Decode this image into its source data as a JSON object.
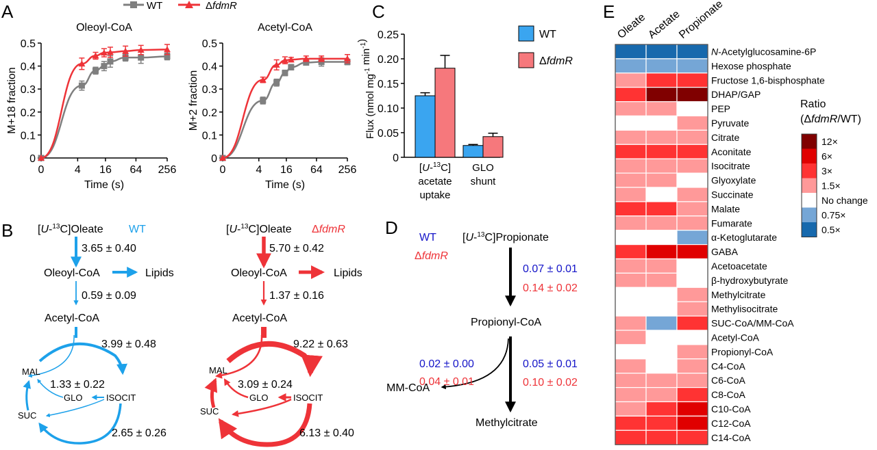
{
  "panel_labels": {
    "a": "A",
    "b": "B",
    "c": "C",
    "d": "D",
    "e": "E"
  },
  "colors": {
    "wt_gray": "#7f7f7f",
    "mut_red": "#ee3338",
    "wt_blue": "#1da1ea",
    "c_blue": "#3aa5f0",
    "c_pink": "#f6787c",
    "d_blue": "#1414c8",
    "d_red": "#ee3338"
  },
  "legend_a": {
    "wt": "WT",
    "mut_delta": "Δ",
    "mut_gene": "fdmR"
  },
  "chart_data": [
    {
      "id": "A1",
      "type": "line",
      "title": "Oleoyl-CoA",
      "xlabel": "Time (s)",
      "ylabel": "M+18 fraction",
      "xscale": "log2(1+t)",
      "xticks": [
        "0",
        "4",
        "16",
        "64",
        "256"
      ],
      "yticks": [
        "0",
        "0.1",
        "0.2",
        "0.3",
        "0.4",
        "0.5"
      ],
      "ylim": [
        0,
        0.5
      ],
      "xlim": [
        0,
        256
      ],
      "x": [
        0,
        5,
        10,
        15,
        20,
        40,
        80,
        256
      ],
      "series": [
        {
          "name": "WT",
          "marker": "square",
          "values": [
            0,
            0.315,
            0.38,
            0.4,
            0.42,
            0.437,
            0.437,
            0.442
          ],
          "errors": [
            0,
            0.02,
            0.015,
            0.02,
            0.025,
            0.015,
            0.025,
            0.015
          ]
        },
        {
          "name": "ΔfdmR",
          "marker": "triangle",
          "values": [
            0,
            0.41,
            0.445,
            0.458,
            0.46,
            0.465,
            0.47,
            0.472
          ],
          "errors": [
            0,
            0.025,
            0.015,
            0.018,
            0.022,
            0.022,
            0.02,
            0.022
          ]
        }
      ]
    },
    {
      "id": "A2",
      "type": "line",
      "title": "Acetyl-CoA",
      "xlabel": "Time (s)",
      "ylabel": "M+2 fraction",
      "xscale": "log2(1+t)",
      "xticks": [
        "0",
        "4",
        "16",
        "64",
        "256"
      ],
      "yticks": [
        "0",
        "0.1",
        "0.2",
        "0.3",
        "0.4",
        "0.5"
      ],
      "ylim": [
        0,
        0.5
      ],
      "xlim": [
        0,
        256
      ],
      "x": [
        0,
        5,
        10,
        15,
        20,
        40,
        80,
        256
      ],
      "series": [
        {
          "name": "WT",
          "marker": "square",
          "values": [
            0,
            0.25,
            0.328,
            0.37,
            0.395,
            0.415,
            0.418,
            0.418
          ],
          "errors": [
            0,
            0.015,
            0.015,
            0.012,
            0.012,
            0.008,
            0.018,
            0.012
          ]
        },
        {
          "name": "ΔfdmR",
          "marker": "triangle",
          "values": [
            0,
            0.34,
            0.405,
            0.425,
            0.428,
            0.432,
            0.432,
            0.432
          ],
          "errors": [
            0,
            0.012,
            0.022,
            0.015,
            0.01,
            0.012,
            0.012,
            0.018
          ]
        }
      ]
    },
    {
      "id": "C",
      "type": "bar",
      "ylabel": "Flux (nmol mg-1 min-1)",
      "ylim": [
        0,
        0.25
      ],
      "yticks": [
        "0",
        "0.05",
        "0.10",
        "0.15",
        "0.20",
        "0.25"
      ],
      "categories": [
        [
          "[U-13C]",
          "acetate",
          "uptake"
        ],
        [
          "GLO",
          "shunt"
        ]
      ],
      "series": [
        {
          "name": "WT",
          "values": [
            0.125,
            0.024
          ],
          "errors": [
            0.006,
            0.002
          ]
        },
        {
          "name": "ΔfdmR",
          "values": [
            0.181,
            0.042
          ],
          "errors": [
            0.026,
            0.007
          ]
        }
      ]
    },
    {
      "id": "E",
      "type": "heatmap",
      "columns": [
        "Oleate",
        "Acetate",
        "Propionate"
      ],
      "legend_title": "Ratio",
      "legend_subtitle_pre": "(Δ",
      "legend_subtitle_gene": "fdmR",
      "legend_subtitle_post": "/WT)",
      "levels": [
        {
          "label": "12×",
          "color": "#800000"
        },
        {
          "label": "6×",
          "color": "#e00000"
        },
        {
          "label": "3×",
          "color": "#ff3333"
        },
        {
          "label": "1.5×",
          "color": "#ff9999"
        },
        {
          "label": "No change",
          "color": "#ffffff"
        },
        {
          "label": "0.75×",
          "color": "#75a6d6"
        },
        {
          "label": "0.5×",
          "color": "#1769ad"
        }
      ],
      "rows": [
        {
          "name": "N-Acetylglucosamine-6P",
          "italic_prefix": "N",
          "values": [
            "0.5×",
            "0.5×",
            "0.5×"
          ]
        },
        {
          "name": "Hexose phosphate",
          "values": [
            "0.75×",
            "0.75×",
            "0.75×"
          ]
        },
        {
          "name": "Fructose 1,6-bisphosphate",
          "values": [
            "1.5×",
            "3×",
            "3×"
          ]
        },
        {
          "name": "DHAP/GAP",
          "values": [
            "3×",
            "12×",
            "12×"
          ]
        },
        {
          "name": "PEP",
          "values": [
            "1.5×",
            "1.5×",
            "No change"
          ]
        },
        {
          "name": "Pyruvate",
          "values": [
            "No change",
            "No change",
            "1.5×"
          ]
        },
        {
          "name": "Citrate",
          "values": [
            "1.5×",
            "1.5×",
            "1.5×"
          ]
        },
        {
          "name": "Aconitate",
          "values": [
            "3×",
            "3×",
            "3×"
          ]
        },
        {
          "name": "Isocitrate",
          "values": [
            "1.5×",
            "1.5×",
            "1.5×"
          ]
        },
        {
          "name": "Glyoxylate",
          "values": [
            "1.5×",
            "1.5×",
            "No change"
          ]
        },
        {
          "name": "Succinate",
          "values": [
            "1.5×",
            "No change",
            "1.5×"
          ]
        },
        {
          "name": "Malate",
          "values": [
            "3×",
            "3×",
            "1.5×"
          ]
        },
        {
          "name": "Fumarate",
          "values": [
            "1.5×",
            "1.5×",
            "1.5×"
          ]
        },
        {
          "name": "α-Ketoglutarate",
          "values": [
            "No change",
            "No change",
            "0.75×"
          ]
        },
        {
          "name": "GABA",
          "values": [
            "3×",
            "6×",
            "6×"
          ]
        },
        {
          "name": "Acetoacetate",
          "values": [
            "1.5×",
            "1.5×",
            "No change"
          ]
        },
        {
          "name": "β-hydroxybutyrate",
          "values": [
            "1.5×",
            "1.5×",
            "No change"
          ]
        },
        {
          "name": "Methylcitrate",
          "values": [
            "No change",
            "No change",
            "1.5×"
          ]
        },
        {
          "name": "Methylisocitrate",
          "values": [
            "No change",
            "No change",
            "1.5×"
          ]
        },
        {
          "name": "SUC-CoA/MM-CoA",
          "values": [
            "1.5×",
            "0.75×",
            "3×"
          ]
        },
        {
          "name": "Acetyl-CoA",
          "values": [
            "1.5×",
            "No change",
            "No change"
          ]
        },
        {
          "name": "Propionyl-CoA",
          "values": [
            "No change",
            "No change",
            "1.5×"
          ]
        },
        {
          "name": "C4-CoA",
          "values": [
            "1.5×",
            "No change",
            "1.5×"
          ]
        },
        {
          "name": "C6-CoA",
          "values": [
            "1.5×",
            "1.5×",
            "1.5×"
          ]
        },
        {
          "name": "C8-CoA",
          "values": [
            "1.5×",
            "1.5×",
            "3×"
          ]
        },
        {
          "name": "C10-CoA",
          "values": [
            "1.5×",
            "3×",
            "6×"
          ]
        },
        {
          "name": "C12-CoA",
          "values": [
            "3×",
            "3×",
            "6×"
          ]
        },
        {
          "name": "C14-CoA",
          "values": [
            "3×",
            "3×",
            "3×"
          ]
        }
      ]
    }
  ],
  "legend_c": {
    "wt": "WT",
    "mut_delta": "Δ",
    "mut_gene": "fdmR"
  },
  "panel_b": {
    "wt": {
      "strain": "WT",
      "substrate_pre": "[",
      "substrate_u": "U",
      "substrate_sup": "13",
      "substrate_post": "C]Oleate",
      "nodes": {
        "oleoyl": "Oleoyl-CoA",
        "lipids": "Lipids",
        "acetyl": "Acetyl-CoA",
        "mal": "MAL",
        "glo": "GLO",
        "isocit": "ISOCIT",
        "suc": "SUC"
      },
      "flux": {
        "uptake": "3.65 ± 0.40",
        "beta_ox": "0.59 ± 0.09",
        "tca": "3.99 ± 0.48",
        "glo": "1.33 ± 0.22",
        "suc": "2.65 ± 0.26"
      }
    },
    "mut": {
      "strain_delta": "Δ",
      "strain_gene": "fdmR",
      "substrate_pre": "[",
      "substrate_u": "U",
      "substrate_sup": "13",
      "substrate_post": "C]Oleate",
      "nodes": {
        "oleoyl": "Oleoyl-CoA",
        "lipids": "Lipids",
        "acetyl": "Acetyl-CoA",
        "mal": "MAL",
        "glo": "GLO",
        "isocit": "ISOCIT",
        "suc": "SUC"
      },
      "flux": {
        "uptake": "5.70 ± 0.42",
        "beta_ox": "1.37 ± 0.16",
        "tca": "9.22 ± 0.63",
        "glo": "3.09 ± 0.24",
        "suc": "6.13 ± 0.40"
      }
    }
  },
  "panel_d": {
    "wt": "WT",
    "mut_delta": "Δ",
    "mut_gene": "fdmR",
    "substrate_pre": "[",
    "substrate_u": "U",
    "substrate_sup": "13",
    "substrate_post": "C]Propionate",
    "propionyl": "Propionyl-CoA",
    "mmcoa": "MM-CoA",
    "methylcitrate": "Methylcitrate",
    "flux_uptake_wt": "0.07 ± 0.01",
    "flux_uptake_mut": "0.14 ± 0.02",
    "flux_mm_wt": "0.02 ± 0.00",
    "flux_mm_mut": "0.04 ± 0.01",
    "flux_mc_wt": "0.05 ± 0.01",
    "flux_mc_mut": "0.10 ± 0.02"
  }
}
